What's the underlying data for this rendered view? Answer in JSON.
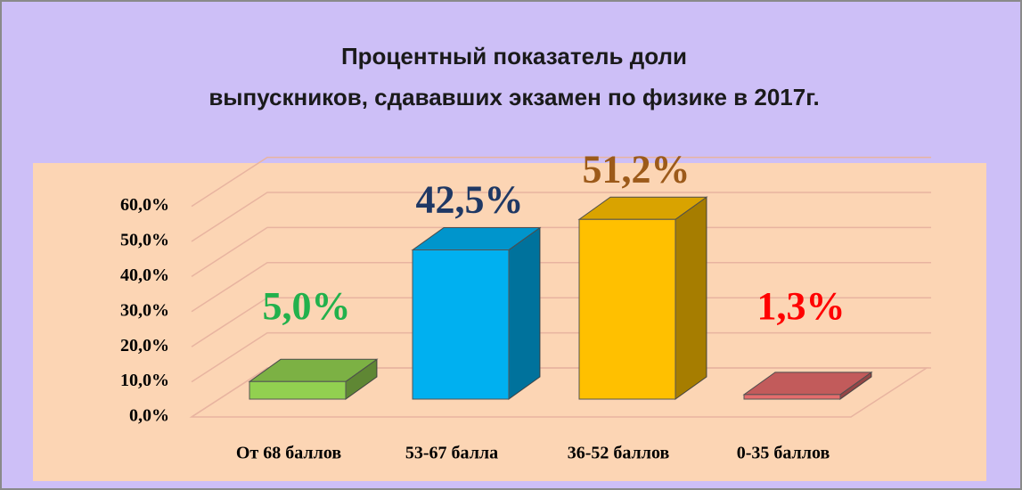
{
  "chart_data": {
    "type": "bar3d",
    "title": [
      "Процентный показатель доли",
      "выпускников, сдававших экзамен по физике в 2017г."
    ],
    "categories": [
      "От 68 баллов",
      "53-67 балла",
      "36-52 баллов",
      "0-35 баллов"
    ],
    "values": [
      5.0,
      42.5,
      51.2,
      1.3
    ],
    "value_labels": [
      "5,0%",
      "42,5%",
      "51,2%",
      "1,3%"
    ],
    "colors": [
      "#92d050",
      "#00b0f0",
      "#ffc000",
      "#e46c6c"
    ],
    "label_colors": [
      "#22b14c",
      "#1f3864",
      "#9c5a1a",
      "#ff0000"
    ],
    "ylim": [
      0,
      60
    ],
    "yticks": [
      {
        "value": 0,
        "label": "0,0%"
      },
      {
        "value": 10,
        "label": "10,0%"
      },
      {
        "value": 20,
        "label": "20,0%"
      },
      {
        "value": 30,
        "label": "30,0%"
      },
      {
        "value": 40,
        "label": "40,0%"
      },
      {
        "value": 50,
        "label": "50,0%"
      },
      {
        "value": 60,
        "label": "60,0%"
      }
    ],
    "grid": true
  }
}
